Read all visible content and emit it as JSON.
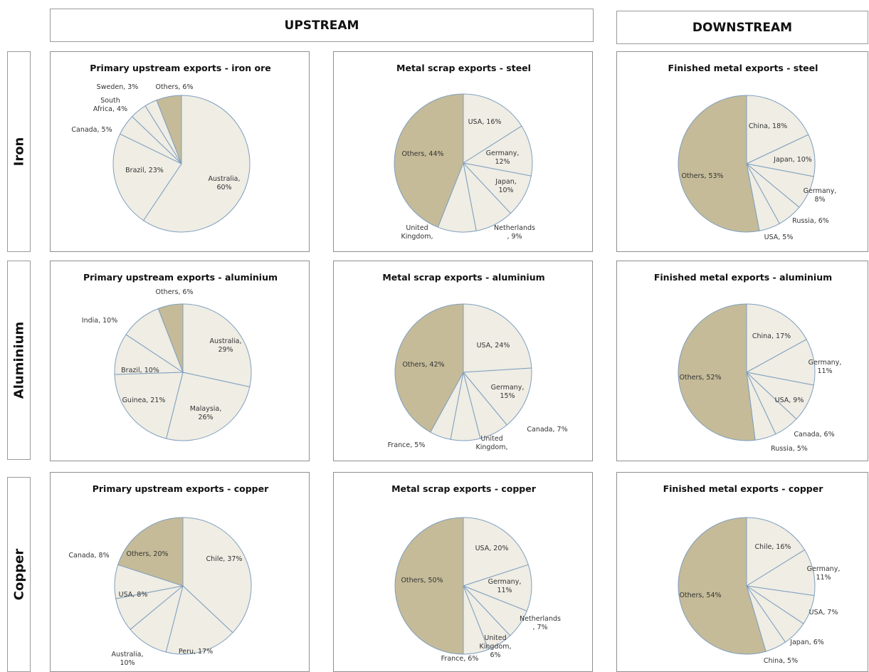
{
  "headers": {
    "upstream": "UPSTREAM",
    "downstream": "DOWNSTREAM"
  },
  "rows": {
    "iron": "Iron",
    "aluminium": "Aluminium",
    "copper": "Copper"
  },
  "colors": {
    "others": "#c5bb98",
    "slice": "#efede4",
    "stroke": "#7f9fbf"
  },
  "chart_data": [
    {
      "type": "pie",
      "title": "Primary upstream exports - iron ore",
      "slices": [
        {
          "label": "Australia, 60%",
          "value": 60
        },
        {
          "label": "Brazil, 23%",
          "value": 23
        },
        {
          "label": "Canada, 5%",
          "value": 5
        },
        {
          "label": "South Africa, 4%",
          "value": 4
        },
        {
          "label": "Sweden, 3%",
          "value": 3
        },
        {
          "label": "Others, 6%",
          "value": 6,
          "highlight": true
        }
      ]
    },
    {
      "type": "pie",
      "title": "Metal scrap exports - steel",
      "slices": [
        {
          "label": "USA, 16%",
          "value": 16
        },
        {
          "label": "Germany, 12%",
          "value": 12
        },
        {
          "label": "Japan, 10%",
          "value": 10
        },
        {
          "label": "Netherlands , 9%",
          "value": 9
        },
        {
          "label": "United Kingdom,",
          "value": 9
        },
        {
          "label": "Others, 44%",
          "value": 44,
          "highlight": true
        }
      ]
    },
    {
      "type": "pie",
      "title": "Finished metal exports - steel",
      "slices": [
        {
          "label": "China, 18%",
          "value": 18
        },
        {
          "label": "Japan, 10%",
          "value": 10
        },
        {
          "label": "Germany, 8%",
          "value": 8
        },
        {
          "label": "Russia, 6%",
          "value": 6
        },
        {
          "label": "USA, 5%",
          "value": 5
        },
        {
          "label": "Others, 53%",
          "value": 53,
          "highlight": true
        }
      ]
    },
    {
      "type": "pie",
      "title": "Primary upstream exports - aluminium",
      "slices": [
        {
          "label": "Australia, 29%",
          "value": 29
        },
        {
          "label": "Malaysia, 26%",
          "value": 26
        },
        {
          "label": "Guinea, 21%",
          "value": 21
        },
        {
          "label": "Brazil, 10%",
          "value": 10
        },
        {
          "label": "India, 10%",
          "value": 10
        },
        {
          "label": "Others, 6%",
          "value": 6,
          "highlight": true
        }
      ]
    },
    {
      "type": "pie",
      "title": "Metal scrap exports - aluminium",
      "slices": [
        {
          "label": "USA, 24%",
          "value": 24
        },
        {
          "label": "Germany, 15%",
          "value": 15
        },
        {
          "label": "Canada, 7%",
          "value": 7
        },
        {
          "label": "United Kingdom,",
          "value": 7
        },
        {
          "label": "France, 5%",
          "value": 5
        },
        {
          "label": "Others, 42%",
          "value": 42,
          "highlight": true
        }
      ]
    },
    {
      "type": "pie",
      "title": "Finished metal exports - aluminium",
      "slices": [
        {
          "label": "China, 17%",
          "value": 17
        },
        {
          "label": "Germany, 11%",
          "value": 11
        },
        {
          "label": "USA, 9%",
          "value": 9
        },
        {
          "label": "Canada, 6%",
          "value": 6
        },
        {
          "label": "Russia, 5%",
          "value": 5
        },
        {
          "label": "Others, 52%",
          "value": 52,
          "highlight": true
        }
      ]
    },
    {
      "type": "pie",
      "title": "Primary upstream exports - copper",
      "slices": [
        {
          "label": "Chile, 37%",
          "value": 37
        },
        {
          "label": "Peru, 17%",
          "value": 17
        },
        {
          "label": "Australia, 10%",
          "value": 10
        },
        {
          "label": "USA, 8%",
          "value": 8
        },
        {
          "label": "Canada, 8%",
          "value": 8
        },
        {
          "label": "Others, 20%",
          "value": 20,
          "highlight": true
        }
      ]
    },
    {
      "type": "pie",
      "title": "Metal scrap exports - copper",
      "slices": [
        {
          "label": "USA, 20%",
          "value": 20
        },
        {
          "label": "Germany, 11%",
          "value": 11
        },
        {
          "label": "Netherlands , 7%",
          "value": 7
        },
        {
          "label": "United Kingdom, 6%",
          "value": 6
        },
        {
          "label": "France, 6%",
          "value": 6
        },
        {
          "label": "Others, 50%",
          "value": 50,
          "highlight": true
        }
      ]
    },
    {
      "type": "pie",
      "title": "Finished metal exports - copper",
      "slices": [
        {
          "label": "Chile, 16%",
          "value": 16
        },
        {
          "label": "Germany, 11%",
          "value": 11
        },
        {
          "label": "USA, 7%",
          "value": 7
        },
        {
          "label": "Japan, 6%",
          "value": 6
        },
        {
          "label": "China, 5%",
          "value": 5
        },
        {
          "label": "Others, 54%",
          "value": 54,
          "highlight": true
        }
      ]
    }
  ]
}
